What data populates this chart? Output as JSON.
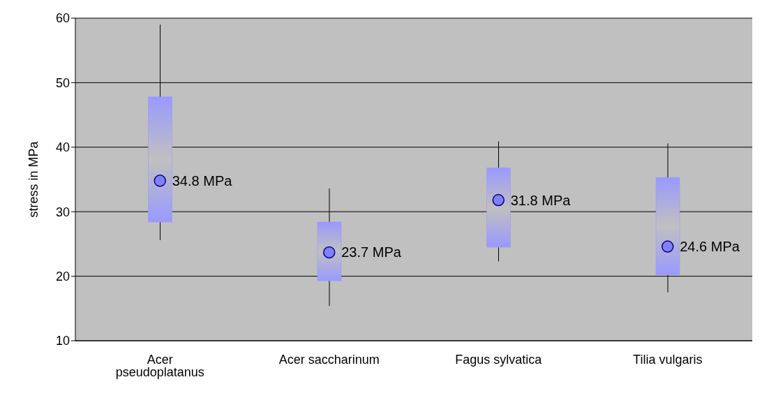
{
  "chart_data": {
    "type": "box",
    "ylabel": "stress in MPa",
    "categories": [
      "Acer pseudoplatanus",
      "Acer saccharinum",
      "Fagus sylvatica",
      "Tilia vulgaris"
    ],
    "boxes": [
      {
        "low": 25.6,
        "q1": 28.4,
        "median": 34.8,
        "q3": 47.8,
        "high": 59.0
      },
      {
        "low": 15.4,
        "q1": 19.3,
        "median": 23.7,
        "q3": 28.4,
        "high": 33.6
      },
      {
        "low": 22.3,
        "q1": 24.5,
        "median": 31.8,
        "q3": 36.8,
        "high": 40.9
      },
      {
        "low": 17.5,
        "q1": 20.2,
        "median": 24.6,
        "q3": 35.3,
        "high": 40.6
      }
    ],
    "annotations": [
      {
        "text": "34.8 MPa",
        "x": "Acer pseudoplatanus",
        "y": 34.8
      },
      {
        "text": "23.7 MPa",
        "x": "Acer saccharinum",
        "y": 23.7
      },
      {
        "text": "31.8 MPa",
        "x": "Fagus sylvatica",
        "y": 31.8
      },
      {
        "text": "24.6 MPa",
        "x": "Tilia vulgaris",
        "y": 24.6
      }
    ],
    "color": "#9999ff",
    "ylim": [
      10,
      60
    ],
    "yticks": [
      10,
      20,
      30,
      40,
      50,
      60
    ],
    "grid": "y",
    "marker": "circle"
  }
}
